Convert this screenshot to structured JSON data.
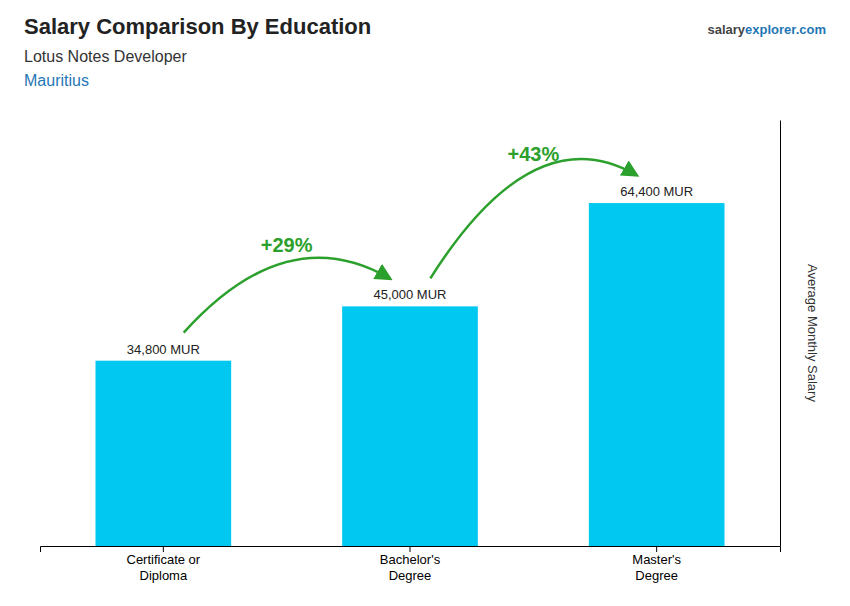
{
  "chart_data": {
    "type": "bar",
    "title": "Salary Comparison By Education",
    "subtitle": "Lotus Notes Developer",
    "location": "Mauritius",
    "source": [
      "salary",
      "explorer.com"
    ],
    "y_label": "Average Monthly Salary",
    "categories": [
      "Certificate or\nDiploma",
      "Bachelor's\nDegree",
      "Master's\nDegree"
    ],
    "values": [
      34800,
      45000,
      64400
    ],
    "value_labels": [
      "34,800 MUR",
      "45,000 MUR",
      "64,400 MUR"
    ],
    "data_labels": true,
    "annotations": [
      "+29%",
      "+43%"
    ],
    "color": "#00c8f0",
    "ylim": [
      0,
      80000
    ],
    "tick_labels": "x",
    "grid": false
  }
}
